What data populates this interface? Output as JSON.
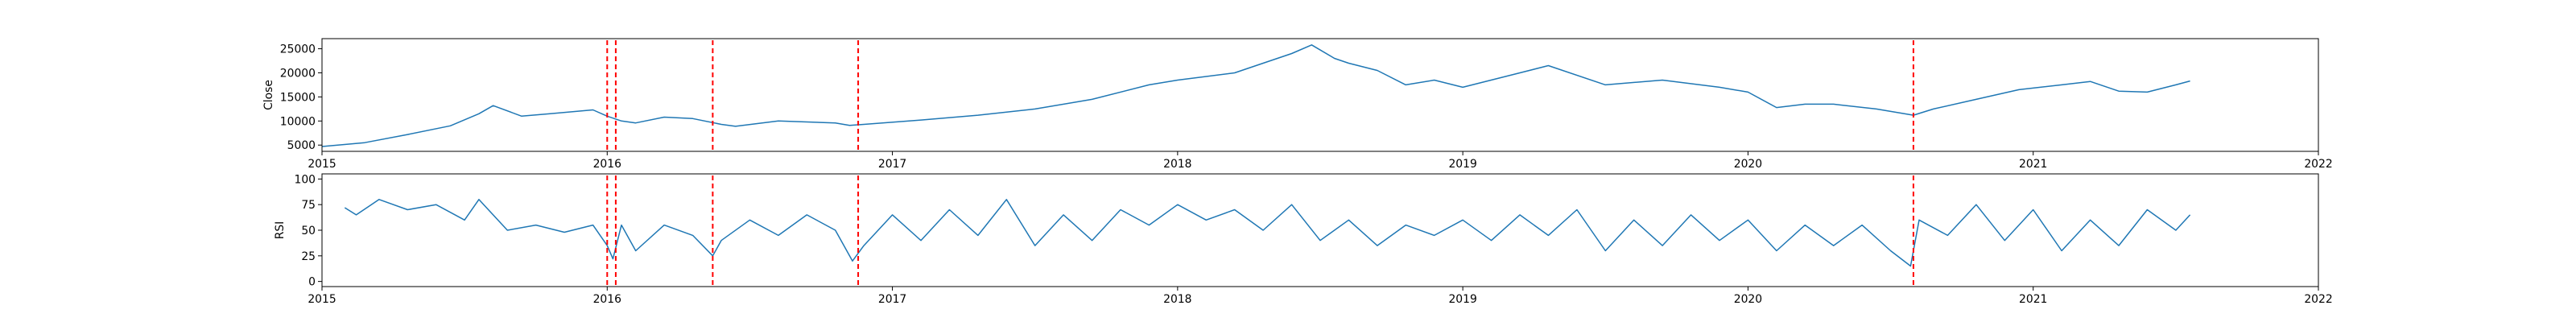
{
  "chart_data": [
    {
      "type": "line",
      "ylabel": "Close",
      "xlabel": "",
      "title": "",
      "x_ticks": [
        "2015",
        "2016",
        "2017",
        "2018",
        "2019",
        "2020",
        "2021",
        "2022"
      ],
      "xlim": [
        2015,
        2022
      ],
      "y_ticks": [
        5000,
        10000,
        15000,
        20000,
        25000
      ],
      "ylim": [
        3700,
        27100
      ],
      "grid": false,
      "line_color": "#1f77b4",
      "series": [
        {
          "x": [
            2015.0,
            2015.15,
            2015.3,
            2015.45,
            2015.55,
            2015.6,
            2015.7,
            2015.8,
            2015.95,
            2016.0,
            2016.05,
            2016.1,
            2016.2,
            2016.3,
            2016.4,
            2016.45,
            2016.6,
            2016.8,
            2016.85,
            2016.9,
            2017.1,
            2017.3,
            2017.5,
            2017.7,
            2017.9,
            2018.0,
            2018.2,
            2018.3,
            2018.4,
            2018.47,
            2018.55,
            2018.6,
            2018.7,
            2018.8,
            2018.9,
            2019.0,
            2019.2,
            2019.3,
            2019.5,
            2019.7,
            2019.9,
            2020.0,
            2020.1,
            2020.2,
            2020.3,
            2020.45,
            2020.58,
            2020.65,
            2020.8,
            2020.95,
            2021.1,
            2021.2,
            2021.3,
            2021.4,
            2021.5,
            2021.55
          ],
          "values": [
            4700,
            5500,
            7200,
            9000,
            11500,
            13200,
            11000,
            11500,
            12300,
            11000,
            10000,
            9600,
            10800,
            10500,
            9300,
            8900,
            10000,
            9600,
            9100,
            9300,
            10200,
            11200,
            12500,
            14500,
            17500,
            18500,
            20000,
            22000,
            24000,
            25800,
            23000,
            22000,
            20500,
            17500,
            18500,
            17000,
            20000,
            21500,
            17500,
            18500,
            17000,
            16000,
            12800,
            13500,
            13500,
            12500,
            11200,
            12500,
            14500,
            16500,
            17500,
            18200,
            16200,
            16000,
            17500,
            18300
          ]
        }
      ],
      "vlines": [
        2016.0,
        2016.03,
        2016.37,
        2016.88,
        2020.58
      ],
      "vline_color": "#ff0000"
    },
    {
      "type": "line",
      "ylabel": "RSI",
      "xlabel": "",
      "title": "",
      "x_ticks": [
        "2015",
        "2016",
        "2017",
        "2018",
        "2019",
        "2020",
        "2021",
        "2022"
      ],
      "xlim": [
        2015,
        2022
      ],
      "y_ticks": [
        0,
        25,
        50,
        75,
        100
      ],
      "ylim": [
        -5,
        105
      ],
      "grid": false,
      "line_color": "#1f77b4",
      "series": [
        {
          "x": [
            2015.08,
            2015.12,
            2015.2,
            2015.3,
            2015.4,
            2015.5,
            2015.55,
            2015.65,
            2015.75,
            2015.85,
            2015.95,
            2016.0,
            2016.02,
            2016.05,
            2016.1,
            2016.2,
            2016.3,
            2016.37,
            2016.4,
            2016.5,
            2016.6,
            2016.7,
            2016.8,
            2016.86,
            2016.9,
            2017.0,
            2017.1,
            2017.2,
            2017.3,
            2017.4,
            2017.5,
            2017.6,
            2017.7,
            2017.8,
            2017.9,
            2018.0,
            2018.1,
            2018.2,
            2018.3,
            2018.4,
            2018.5,
            2018.6,
            2018.7,
            2018.8,
            2018.9,
            2019.0,
            2019.1,
            2019.2,
            2019.3,
            2019.4,
            2019.5,
            2019.6,
            2019.7,
            2019.8,
            2019.9,
            2020.0,
            2020.1,
            2020.2,
            2020.3,
            2020.4,
            2020.5,
            2020.57,
            2020.6,
            2020.7,
            2020.8,
            2020.9,
            2021.0,
            2021.1,
            2021.2,
            2021.3,
            2021.4,
            2021.5,
            2021.55
          ],
          "values": [
            72,
            65,
            80,
            70,
            75,
            60,
            80,
            50,
            55,
            48,
            55,
            35,
            22,
            55,
            30,
            55,
            45,
            25,
            40,
            60,
            45,
            65,
            50,
            20,
            35,
            65,
            40,
            70,
            45,
            80,
            35,
            65,
            40,
            70,
            55,
            75,
            60,
            70,
            50,
            75,
            40,
            60,
            35,
            55,
            45,
            60,
            40,
            65,
            45,
            70,
            30,
            60,
            35,
            65,
            40,
            60,
            30,
            55,
            35,
            55,
            30,
            15,
            60,
            45,
            75,
            40,
            70,
            30,
            60,
            35,
            70,
            50,
            65
          ]
        }
      ],
      "vlines": [
        2016.0,
        2016.03,
        2016.37,
        2016.88,
        2020.58
      ],
      "vline_color": "#ff0000"
    }
  ]
}
